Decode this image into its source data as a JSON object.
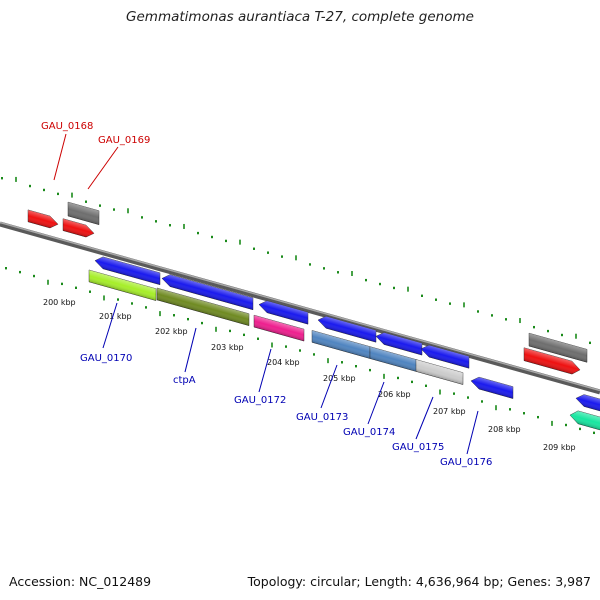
{
  "title": "Gemmatimonas aurantiaca T-27, complete genome",
  "footer": {
    "accession": "Accession: NC_012489",
    "topology": "Topology: circular; Length: 4,636,964 bp; Genes: 3,987"
  },
  "colors": {
    "forward_label": "#cc0000",
    "reverse_label": "#0000b3",
    "tick": "#1a8a1a",
    "backbone": "#7f7f7f"
  },
  "kbp_labels": [
    "200 kbp",
    "201 kbp",
    "202 kbp",
    "203 kbp",
    "204 kbp",
    "205 kbp",
    "206 kbp",
    "207 kbp",
    "208 kbp",
    "209 kbp"
  ],
  "genes": [
    {
      "name": "GAU_0168",
      "strand": "forward",
      "color": "#ee1111"
    },
    {
      "name": "GAU_0169",
      "strand": "forward",
      "color": "#ee1111"
    },
    {
      "name": "GAU_0170",
      "strand": "reverse",
      "color": "#1a1aee"
    },
    {
      "name": "ctpA",
      "strand": "reverse",
      "color": "#1a1aee"
    },
    {
      "name": "GAU_0172",
      "strand": "reverse",
      "color": "#1a1aee"
    },
    {
      "name": "GAU_0173",
      "strand": "reverse",
      "color": "#1a1aee"
    },
    {
      "name": "GAU_0174",
      "strand": "reverse",
      "color": "#1a1aee"
    },
    {
      "name": "GAU_0175",
      "strand": "reverse",
      "color": "#1a1aee"
    },
    {
      "name": "GAU_0176",
      "strand": "reverse",
      "color": "#1a1aee"
    }
  ]
}
